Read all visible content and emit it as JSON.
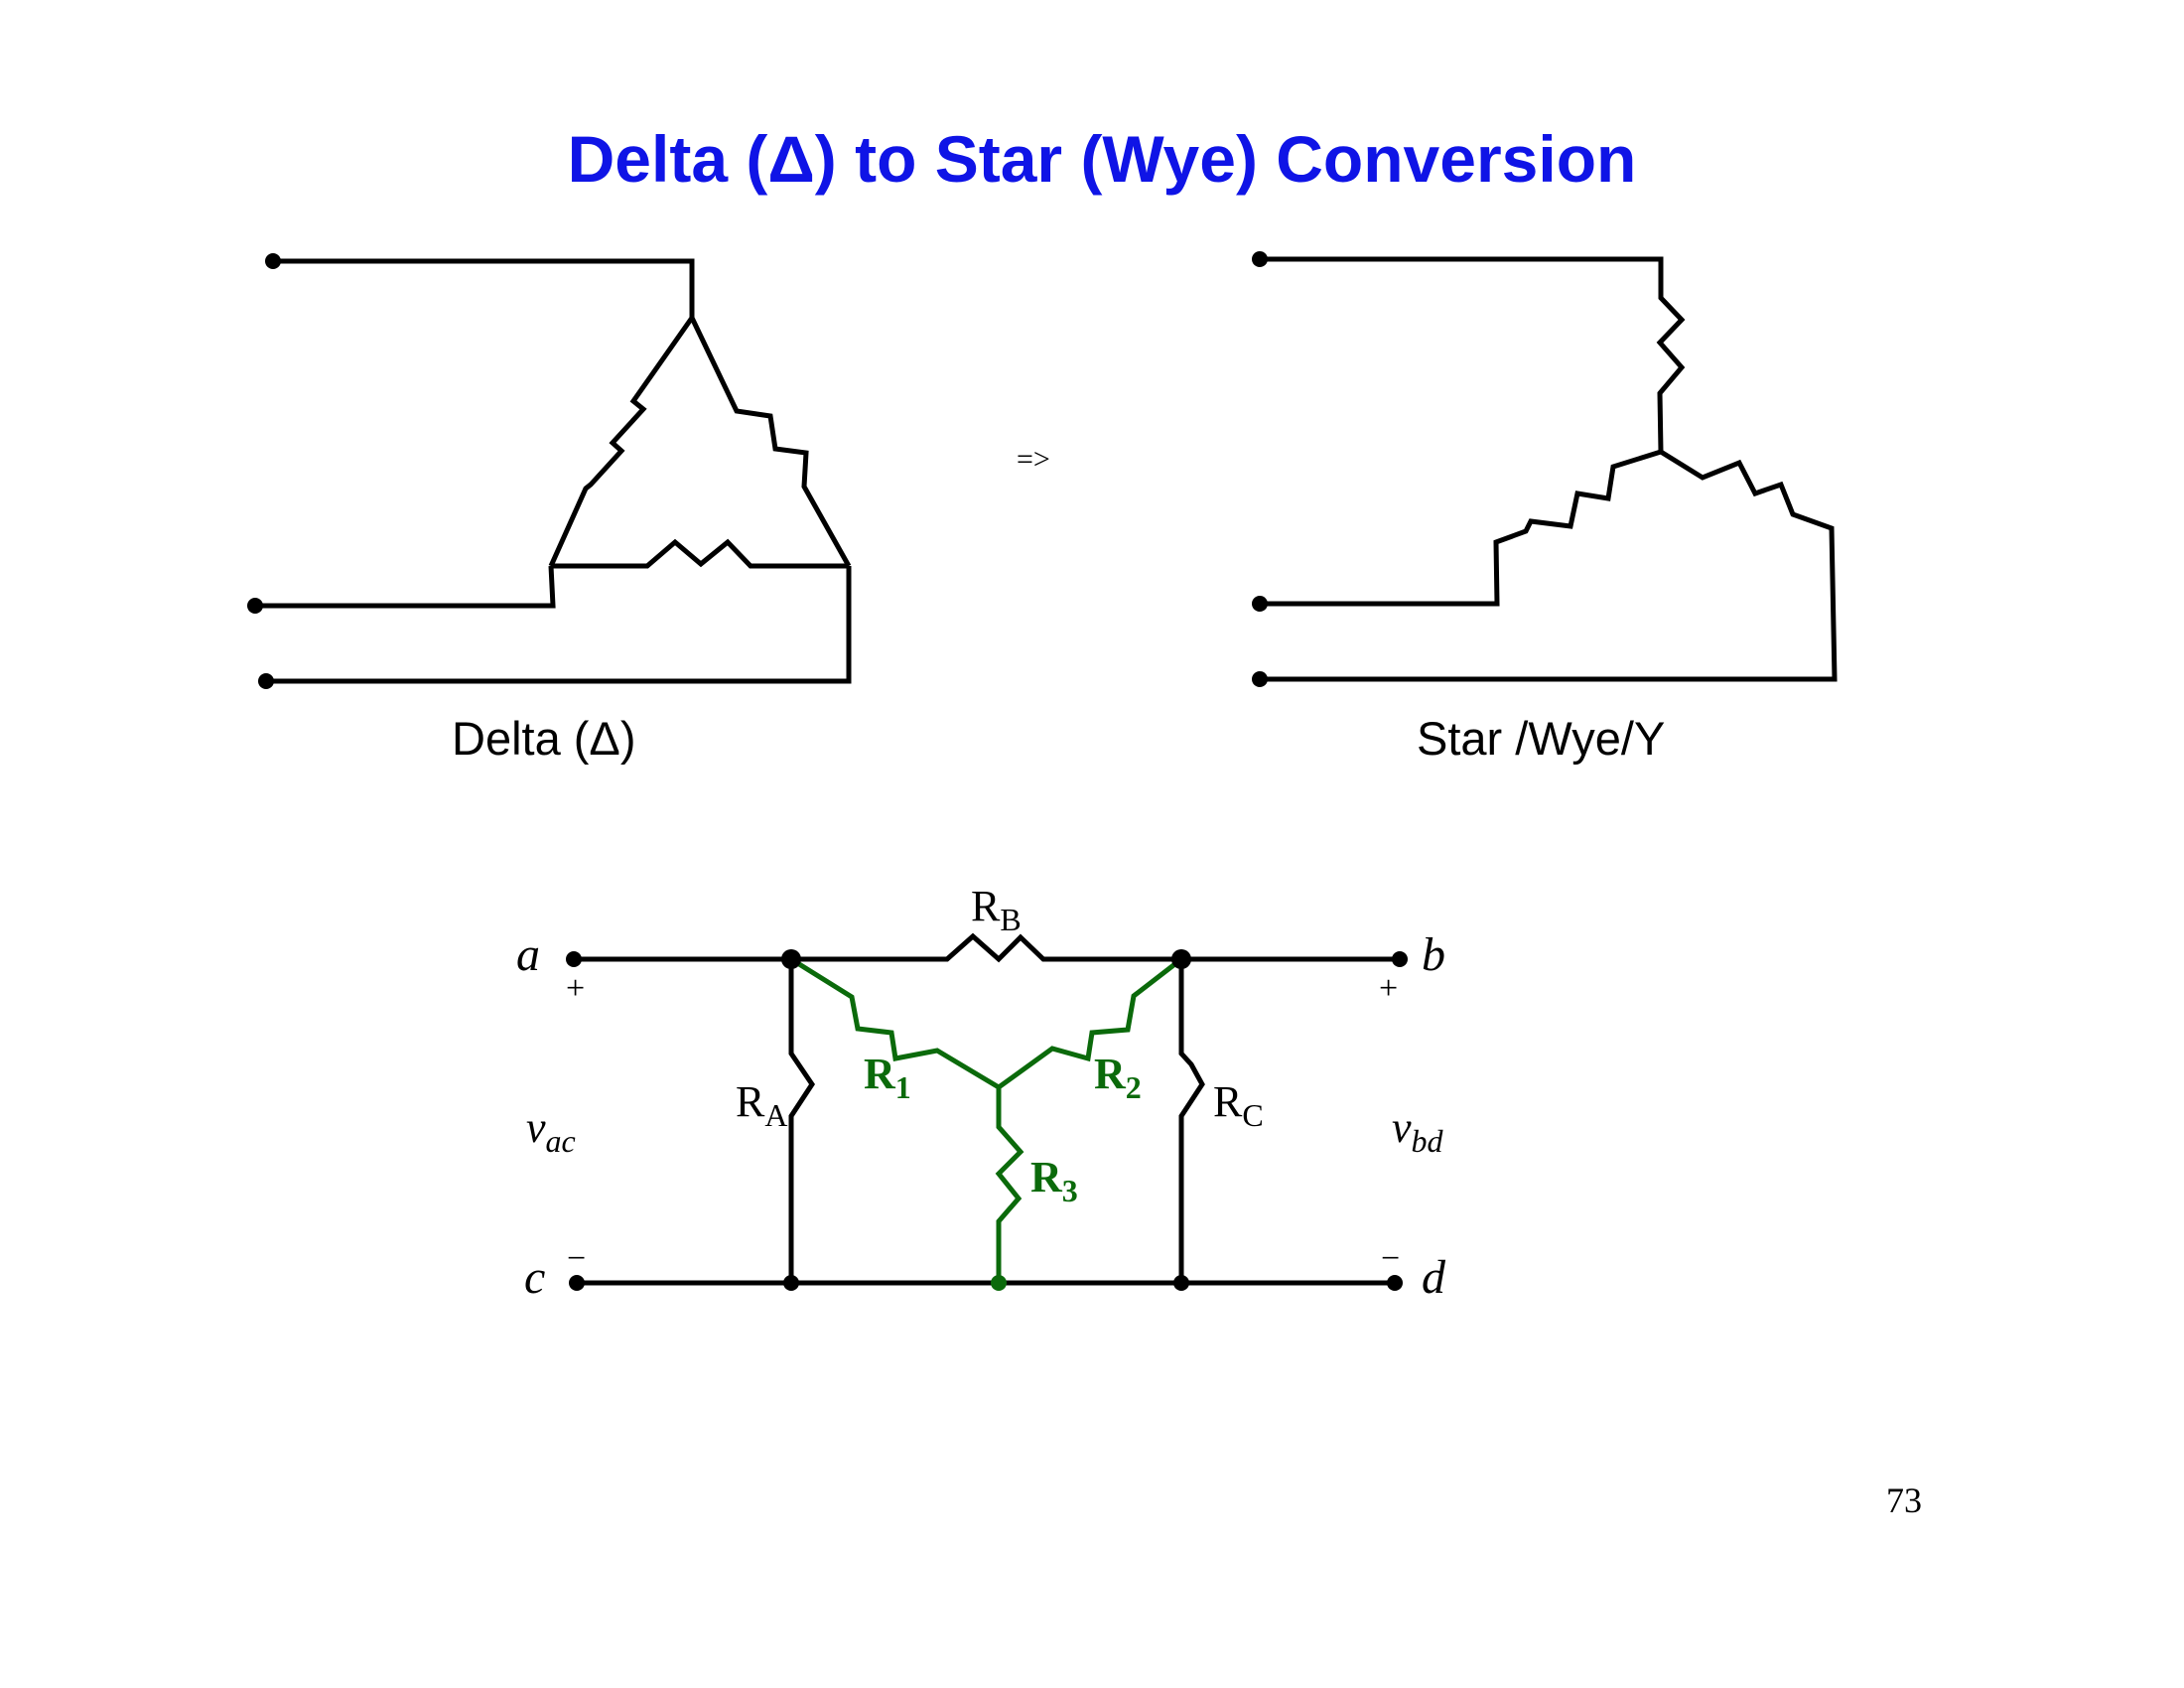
{
  "title": "Delta (Δ) to Star (Wye) Conversion",
  "arrow": "=>",
  "delta_caption": "Delta (Δ)",
  "star_caption": "Star /Wye/Y",
  "circuit": {
    "terminals": {
      "a": "a",
      "b": "b",
      "c": "c",
      "d": "d"
    },
    "plus": "+",
    "minus": "−",
    "v_ac": {
      "main": "v",
      "sub": "ac"
    },
    "v_bd": {
      "main": "v",
      "sub": "bd"
    },
    "resistors": {
      "RA": {
        "main": "R",
        "sub": "A"
      },
      "RB": {
        "main": "R",
        "sub": "B"
      },
      "RC": {
        "main": "R",
        "sub": "C"
      },
      "R1": {
        "main": "R",
        "sub": "1"
      },
      "R2": {
        "main": "R",
        "sub": "2"
      },
      "R3": {
        "main": "R",
        "sub": "3"
      }
    }
  },
  "page_number": "73",
  "colors": {
    "title": "#0f14e6",
    "wye_resistors": "#0b6a0b",
    "wires": "#000000"
  }
}
